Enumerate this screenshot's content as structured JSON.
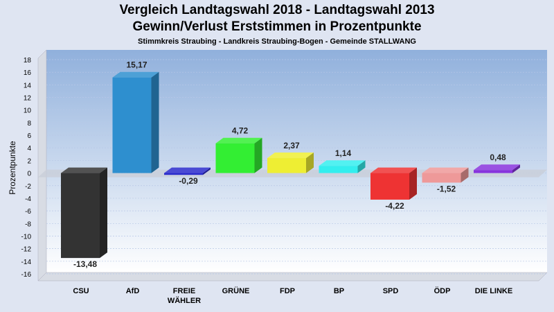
{
  "chart_data": {
    "type": "bar",
    "title": "Vergleich Landtagswahl 2018 - Landtagswahl 2013",
    "subtitle": "Gewinn/Verlust Erststimmen in Prozentpunkte",
    "subsubtitle": "Stimmkreis Straubing - Landkreis Straubing-Bogen - Gemeinde STALLWANG",
    "ylabel": "Prozentpunkte",
    "xlabel": "",
    "ylim": [
      -16,
      18
    ],
    "yticks": [
      "18",
      "16",
      "14",
      "12",
      "10",
      "8",
      "6",
      "4",
      "2",
      "0",
      "-2",
      "-4",
      "-6",
      "-8",
      "-10",
      "-12",
      "-14",
      "-16"
    ],
    "grid": true,
    "categories": [
      "CSU",
      "AfD",
      "FREIE WÄHLER",
      "GRÜNE",
      "FDP",
      "BP",
      "SPD",
      "ÖDP",
      "DIE LINKE"
    ],
    "category_lines": [
      [
        "CSU"
      ],
      [
        "AfD"
      ],
      [
        "FREIE",
        "WÄHLER"
      ],
      [
        "GRÜNE"
      ],
      [
        "FDP"
      ],
      [
        "BP"
      ],
      [
        "SPD"
      ],
      [
        "ÖDP"
      ],
      [
        "DIE LINKE"
      ]
    ],
    "values": [
      -13.48,
      15.17,
      -0.29,
      4.72,
      2.37,
      1.14,
      -4.22,
      -1.52,
      0.48
    ],
    "value_labels": [
      "-13,48",
      "15,17",
      "-0,29",
      "4,72",
      "2,37",
      "1,14",
      "-4,22",
      "-1,52",
      "0,48"
    ],
    "colors": [
      "#333333",
      "#2e8fcf",
      "#2a2acc",
      "#33ee33",
      "#eeee33",
      "#33eeee",
      "#ee3333",
      "#ee9999",
      "#8833dd"
    ]
  }
}
